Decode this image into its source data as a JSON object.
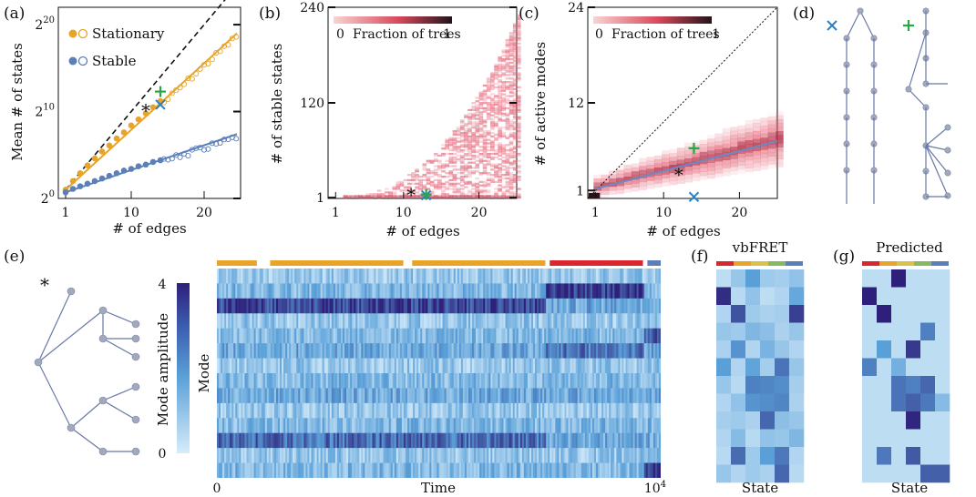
{
  "panels": {
    "a": "(a)",
    "b": "(b)",
    "c": "(c)",
    "d": "(d)",
    "e": "(e)",
    "f": "(f)",
    "g": "(g)"
  },
  "colors": {
    "stationary": "#e8a428",
    "stable": "#5b7fb8",
    "green": "#27a844",
    "blue_x": "#2e7fc4",
    "purple": "#8a4fae",
    "tree": "#6878a8",
    "node": "#a0a9bd",
    "heat_lo": "#f6c8c8",
    "heat_hi": "#2b1518",
    "mode_lo": "#d6ecfa",
    "mode_hi": "#2e1f7a"
  },
  "chart_data": [
    {
      "id": "a",
      "type": "scatter",
      "xlabel": "# of edges",
      "ylabel": "Mean # of states",
      "x_ticks": [
        "1",
        "10",
        "20"
      ],
      "y_ticks": [
        {
          "base": "2",
          "exp": "0"
        },
        {
          "base": "2",
          "exp": "10"
        },
        {
          "base": "2",
          "exp": "20"
        }
      ],
      "xlim": [
        0,
        25
      ],
      "ylim_log2": [
        0,
        22
      ],
      "series": [
        {
          "name": "Stationary",
          "color": "#e8a428",
          "x": [
            1,
            2,
            3,
            4,
            5,
            6,
            7,
            8,
            9,
            10,
            11,
            12,
            13,
            14
          ],
          "y_log2": [
            1,
            2,
            2.9,
            3.8,
            4.6,
            5.4,
            6.1,
            6.9,
            7.6,
            8.4,
            9.1,
            9.8,
            10.5,
            11.2
          ]
        },
        {
          "name": "Stable",
          "color": "#5b7fb8",
          "x": [
            1,
            2,
            3,
            4,
            5,
            6,
            7,
            8,
            9,
            10,
            11,
            12,
            13,
            14
          ],
          "y_log2": [
            0.7,
            1.1,
            1.4,
            1.7,
            2.0,
            2.3,
            2.6,
            2.9,
            3.2,
            3.4,
            3.7,
            3.9,
            4.2,
            4.4
          ]
        }
      ],
      "fits": [
        {
          "series": "Stationary",
          "from": [
            1,
            1
          ],
          "to": [
            24.5,
            19
          ]
        },
        {
          "series": "Stable",
          "from": [
            1,
            0.7
          ],
          "to": [
            24.5,
            7.4
          ]
        }
      ],
      "diagonal": {
        "from": [
          1,
          1
        ],
        "to": [
          24.5,
          24.5
        ]
      },
      "markers": [
        {
          "symbol": "*",
          "x": 12,
          "y_log2": 10.2
        },
        {
          "symbol": "+",
          "x": 14,
          "y_log2": 12.3
        },
        {
          "symbol": "x",
          "x": 14,
          "y_log2": 10.8
        }
      ]
    },
    {
      "id": "b",
      "type": "heatmap",
      "xlabel": "# of edges",
      "ylabel": "# of stable states",
      "x_ticks": [
        "1",
        "10",
        "20"
      ],
      "y_ticks": [
        "1",
        "120",
        "240"
      ],
      "xlim": [
        0,
        25
      ],
      "ylim": [
        0,
        240
      ],
      "colorbar": {
        "label": "Fraction of trees",
        "min": "0",
        "max": "1"
      },
      "markers": [
        {
          "symbol": "*",
          "x": 11,
          "y": 6
        },
        {
          "symbol": "x",
          "x": 13,
          "y": 4
        },
        {
          "symbol": "+",
          "x": 13,
          "y": 5
        }
      ]
    },
    {
      "id": "c",
      "type": "heatmap",
      "xlabel": "# of edges",
      "ylabel": "# of active modes",
      "x_ticks": [
        "1",
        "10",
        "20"
      ],
      "y_ticks": [
        "1",
        "12",
        "24"
      ],
      "xlim": [
        0,
        25
      ],
      "ylim": [
        0,
        24
      ],
      "colorbar": {
        "label": "Fraction of trees",
        "min": "0",
        "max": "1"
      },
      "trend": {
        "from": [
          1,
          1.2
        ],
        "to": [
          25,
          7.2
        ]
      },
      "markers": [
        {
          "symbol": "+",
          "x": 14,
          "y": 6.3
        },
        {
          "symbol": "*",
          "x": 12,
          "y": 3.1
        },
        {
          "symbol": "x",
          "x": 14,
          "y": 0.2
        }
      ]
    },
    {
      "id": "e",
      "type": "heatmap",
      "xlabel": "Time",
      "ylabel": "Mode",
      "x_ticks": [
        {
          "text": "0"
        },
        {
          "base": "10",
          "exp": "4"
        }
      ],
      "colorbar": {
        "label": "Mode amplitude",
        "min": "0",
        "max": "4"
      },
      "n_modes": 14,
      "state_bar": [
        {
          "start": 0,
          "end": 0.09,
          "color": "#e8a428"
        },
        {
          "start": 0.12,
          "end": 0.42,
          "color": "#e8a428"
        },
        {
          "start": 0.44,
          "end": 0.74,
          "color": "#e8a428"
        },
        {
          "start": 0.75,
          "end": 0.96,
          "color": "#d8282e"
        },
        {
          "start": 0.97,
          "end": 1.25,
          "color": "#5b7fb8"
        }
      ]
    },
    {
      "id": "f",
      "type": "heatmap",
      "title": "vbFRET",
      "xlabel": "State",
      "header_colors": [
        "#d8282e",
        "#e8a428",
        "#d8c24a",
        "#88b860",
        "#5b7fb8"
      ],
      "values": [
        [
          0.4,
          1.0,
          2.0,
          0.9,
          0.8,
          1.1
        ],
        [
          3.8,
          0.5,
          1.1,
          0.4,
          0.6,
          1.8
        ],
        [
          0.6,
          3.2,
          0.9,
          0.7,
          0.8,
          3.5
        ],
        [
          1.0,
          0.9,
          1.4,
          1.2,
          0.7,
          1.0
        ],
        [
          0.7,
          2.2,
          0.6,
          1.5,
          1.0,
          0.6
        ],
        [
          2.0,
          0.6,
          1.9,
          0.8,
          2.7,
          1.0
        ],
        [
          1.0,
          0.5,
          2.5,
          2.4,
          2.3,
          0.8
        ],
        [
          0.6,
          1.1,
          2.2,
          2.3,
          2.4,
          0.7
        ],
        [
          0.8,
          0.9,
          0.7,
          2.9,
          1.2,
          1.0
        ],
        [
          0.6,
          1.3,
          0.5,
          1.1,
          1.0,
          1.4
        ],
        [
          0.5,
          2.8,
          0.9,
          2.0,
          2.6,
          0.6
        ],
        [
          1.0,
          0.6,
          0.9,
          0.7,
          2.9,
          0.5
        ]
      ]
    },
    {
      "id": "g",
      "type": "heatmap",
      "title": "Predicted",
      "xlabel": "State",
      "header_colors": [
        "#d8282e",
        "#e8a428",
        "#d8c24a",
        "#88b860",
        "#5b7fb8"
      ],
      "values": [
        [
          0.4,
          0.4,
          4.0,
          0.4,
          0.4,
          0.4
        ],
        [
          4.0,
          0.4,
          0.4,
          0.4,
          0.4,
          0.4
        ],
        [
          0.4,
          4.0,
          0.4,
          0.4,
          0.4,
          0.4
        ],
        [
          0.4,
          0.4,
          0.4,
          0.4,
          2.5,
          0.4
        ],
        [
          0.4,
          2.0,
          0.4,
          3.6,
          0.4,
          0.4
        ],
        [
          2.5,
          0.4,
          1.6,
          0.4,
          0.4,
          0.4
        ],
        [
          0.4,
          0.4,
          2.7,
          2.5,
          2.9,
          0.4
        ],
        [
          0.4,
          0.4,
          2.7,
          3.0,
          2.6,
          1.3
        ],
        [
          0.4,
          0.4,
          0.4,
          3.9,
          0.4,
          0.4
        ],
        [
          0.4,
          0.4,
          0.4,
          0.4,
          0.4,
          0.4
        ],
        [
          0.4,
          2.6,
          0.4,
          3.1,
          0.4,
          0.4
        ],
        [
          0.4,
          0.4,
          0.4,
          0.4,
          3.0,
          3.0
        ]
      ]
    }
  ],
  "trees": {
    "d": {
      "markers": [
        "x",
        "+"
      ]
    },
    "e": {
      "marker": "*"
    }
  }
}
